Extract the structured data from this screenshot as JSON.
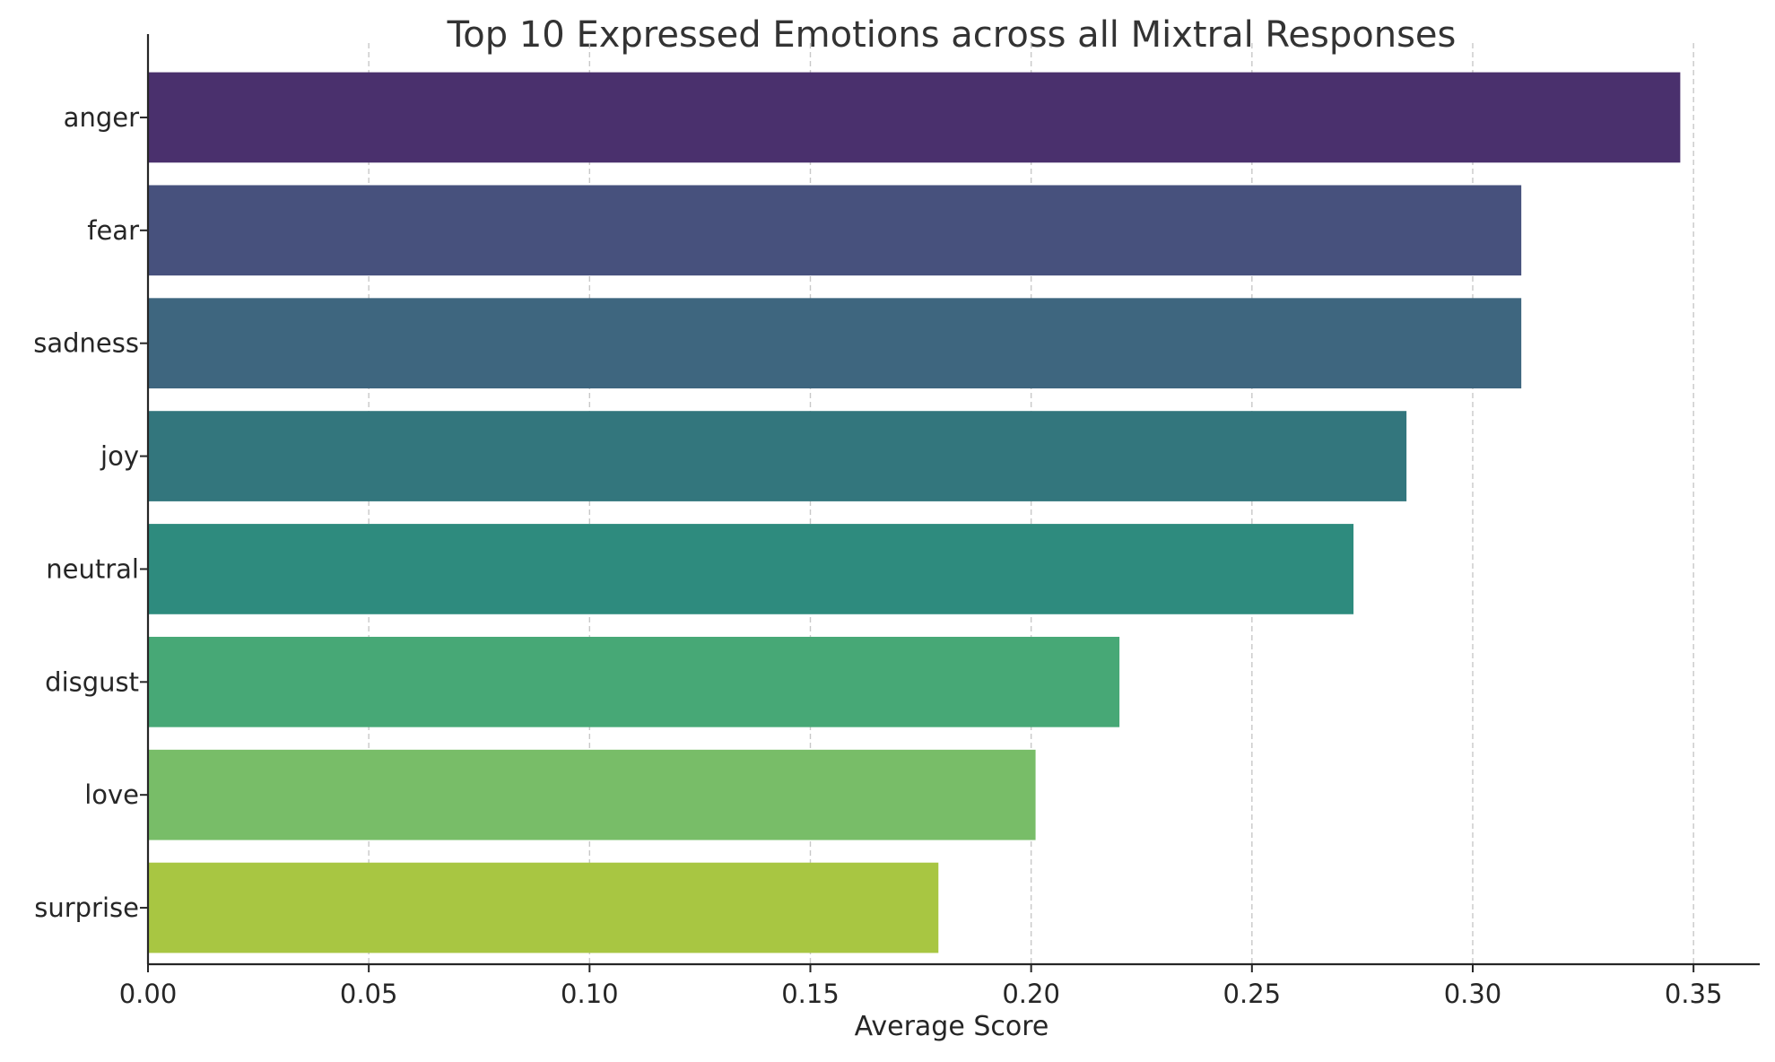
{
  "chart_data": {
    "type": "bar",
    "orientation": "horizontal",
    "title": "Top 10 Expressed Emotions across all Mixtral Responses",
    "xlabel": "Average Score",
    "ylabel": "",
    "categories": [
      "anger",
      "fear",
      "sadness",
      "joy",
      "neutral",
      "disgust",
      "love",
      "surprise"
    ],
    "values": [
      0.347,
      0.311,
      0.311,
      0.285,
      0.273,
      0.22,
      0.201,
      0.179
    ],
    "xlim": [
      0.0,
      0.365
    ],
    "xticks": [
      "0.00",
      "0.05",
      "0.10",
      "0.15",
      "0.20",
      "0.25",
      "0.30",
      "0.35"
    ],
    "grid": "vertical dashed",
    "legend": "none",
    "colors": [
      "#4a306d",
      "#47517d",
      "#3e667f",
      "#33767d",
      "#2e8b7e",
      "#47a876",
      "#78bd68",
      "#a8c642"
    ]
  }
}
